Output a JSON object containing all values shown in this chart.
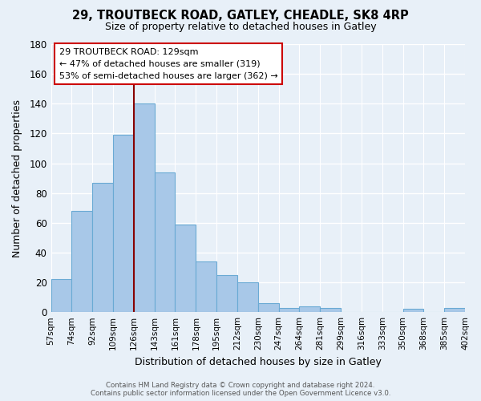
{
  "title": "29, TROUTBECK ROAD, GATLEY, CHEADLE, SK8 4RP",
  "subtitle": "Size of property relative to detached houses in Gatley",
  "xlabel": "Distribution of detached houses by size in Gatley",
  "ylabel": "Number of detached properties",
  "categories": [
    "57sqm",
    "74sqm",
    "92sqm",
    "109sqm",
    "126sqm",
    "143sqm",
    "161sqm",
    "178sqm",
    "195sqm",
    "212sqm",
    "230sqm",
    "247sqm",
    "264sqm",
    "281sqm",
    "299sqm",
    "316sqm",
    "333sqm",
    "350sqm",
    "368sqm",
    "385sqm",
    "402sqm"
  ],
  "values": [
    22,
    68,
    87,
    119,
    140,
    94,
    59,
    34,
    25,
    20,
    6,
    3,
    4,
    3,
    0,
    0,
    0,
    2,
    0,
    3
  ],
  "bar_color": "#a8c8e8",
  "bar_edge_color": "#6aaad4",
  "highlight_line_color": "#880000",
  "highlight_line_index": 4,
  "ylim": [
    0,
    180
  ],
  "yticks": [
    0,
    20,
    40,
    60,
    80,
    100,
    120,
    140,
    160,
    180
  ],
  "annotation_title": "29 TROUTBECK ROAD: 129sqm",
  "annotation_line1": "← 47% of detached houses are smaller (319)",
  "annotation_line2": "53% of semi-detached houses are larger (362) →",
  "annotation_box_color": "#ffffff",
  "annotation_box_edge": "#cc0000",
  "footer_line1": "Contains HM Land Registry data © Crown copyright and database right 2024.",
  "footer_line2": "Contains public sector information licensed under the Open Government Licence v3.0.",
  "background_color": "#e8f0f8",
  "plot_background_color": "#e8f0f8",
  "grid_color": "#ffffff"
}
